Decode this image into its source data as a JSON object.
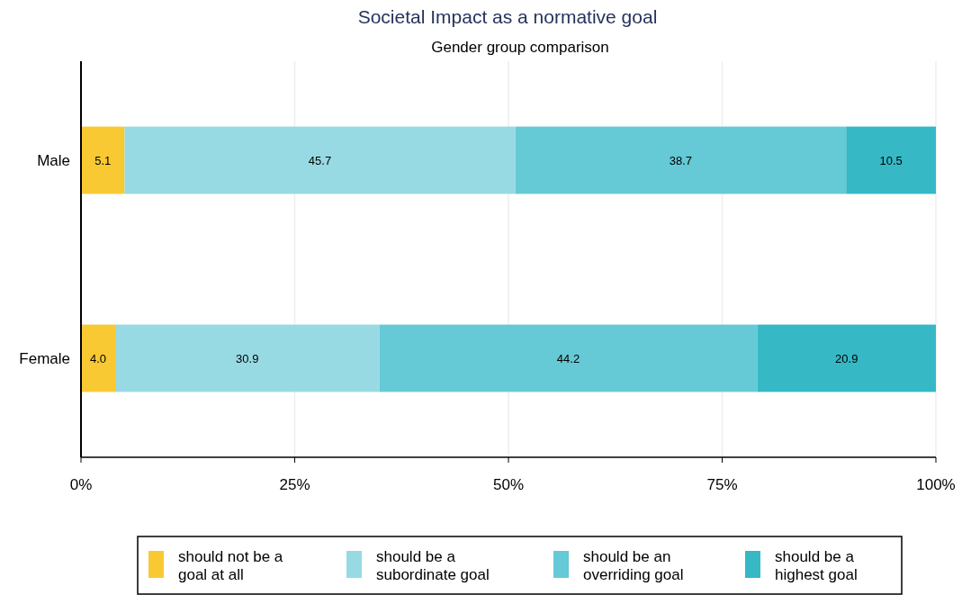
{
  "chart_data": {
    "type": "bar",
    "orientation": "horizontal",
    "stacked": true,
    "title": "Societal Impact as a normative goal",
    "subtitle": "Gender group comparison",
    "categories": [
      "Male",
      "Female"
    ],
    "series": [
      {
        "name": "should not be a goal at all",
        "color": "#f9c933",
        "values": [
          5.1,
          4.0
        ],
        "value_labels": [
          "5.1",
          "4.0"
        ]
      },
      {
        "name": "should be a subordinate goal",
        "color": "#98dae3",
        "values": [
          45.7,
          30.9
        ],
        "value_labels": [
          "45.7",
          "30.9"
        ]
      },
      {
        "name": "should be an overriding goal",
        "color": "#66c9d6",
        "values": [
          38.7,
          44.2
        ],
        "value_labels": [
          "38.7",
          "44.2"
        ]
      },
      {
        "name": "should be a highest goal",
        "color": "#36b8c5",
        "values": [
          10.5,
          20.9
        ],
        "value_labels": [
          "10.5",
          "20.9"
        ]
      }
    ],
    "xlim": [
      0,
      100
    ],
    "xticks": [
      {
        "value": 0,
        "label": "0%"
      },
      {
        "value": 25,
        "label": "25%"
      },
      {
        "value": 50,
        "label": "50%"
      },
      {
        "value": 75,
        "label": "75%"
      },
      {
        "value": 100,
        "label": "100%"
      }
    ],
    "grid": "x",
    "legend": "bottom"
  }
}
